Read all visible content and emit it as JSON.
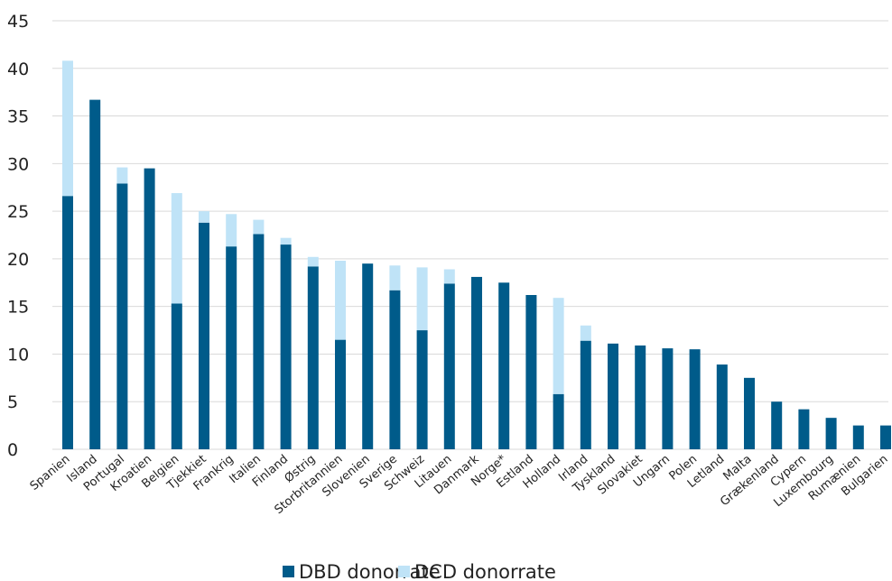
{
  "chart_data": {
    "type": "bar",
    "stacked": true,
    "categories": [
      "Spanien",
      "Island",
      "Portugal",
      "Kroatien",
      "Belgien",
      "Tjekkiet",
      "Frankrig",
      "Italien",
      "Finland",
      "Østrig",
      "Storbritannien",
      "Slovenien",
      "Sverige",
      "Schweiz",
      "Litauen",
      "Danmark",
      "Norge*",
      "Estland",
      "Holland",
      "Irland",
      "Tyskland",
      "Slovakiet",
      "Ungarn",
      "Polen",
      "Letland",
      "Malta",
      "Grækenland",
      "Cypern",
      "Luxembourg",
      "Rumænien",
      "Bulgarien"
    ],
    "series": [
      {
        "name": "DBD donorrate",
        "color": "#005b8a",
        "values": [
          26.6,
          36.7,
          27.9,
          29.5,
          15.3,
          23.8,
          21.3,
          22.6,
          21.5,
          19.2,
          11.5,
          19.5,
          16.7,
          12.5,
          17.4,
          18.1,
          17.5,
          16.2,
          5.8,
          11.4,
          11.1,
          10.9,
          10.6,
          10.5,
          8.9,
          7.5,
          5.0,
          4.2,
          3.3,
          2.5,
          2.5
        ]
      },
      {
        "name": "DCD donorrate",
        "color": "#bfe3f7",
        "values": [
          14.2,
          0,
          1.7,
          0,
          11.6,
          1.2,
          3.4,
          1.5,
          0.7,
          1.0,
          8.3,
          0,
          2.6,
          6.6,
          1.5,
          0,
          0,
          0,
          10.1,
          1.6,
          0,
          0,
          0,
          0,
          0,
          0,
          0,
          0,
          0,
          0,
          0
        ]
      }
    ],
    "yticks": [
      "0",
      "5",
      "10",
      "15",
      "20",
      "25",
      "30",
      "35",
      "40",
      "45"
    ],
    "ylim": [
      0,
      45
    ],
    "grid": true,
    "legend_position": "bottom"
  }
}
